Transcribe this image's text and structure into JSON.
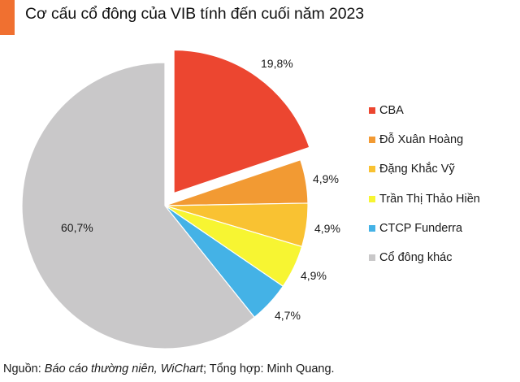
{
  "header": {
    "title": "Cơ cấu cổ đông của VIB tính đến cuối năm 2023",
    "accent_color": "#f07030"
  },
  "chart_data": {
    "type": "pie",
    "title": "Cơ cấu cổ đông của VIB tính đến cuối năm 2023",
    "categories": [
      "CBA",
      "Đỗ Xuân Hoàng",
      "Đặng Khắc Vỹ",
      "Trần Thị Thảo Hiền",
      "CTCP Funderra",
      "Cổ đông khác"
    ],
    "values": [
      19.8,
      4.9,
      4.9,
      4.9,
      4.7,
      60.7
    ],
    "value_labels": [
      "19,8%",
      "4,9%",
      "4,9%",
      "4,9%",
      "4,7%",
      "60,7%"
    ],
    "colors": [
      "#ec4630",
      "#f29a33",
      "#f9c232",
      "#f7f532",
      "#44b2e6",
      "#c9c8c9"
    ],
    "exploded": [
      "CBA"
    ],
    "legend_position": "right",
    "unit": "%"
  },
  "legend": {
    "items": [
      {
        "label": "CBA",
        "color": "#ec4630"
      },
      {
        "label": "Đỗ Xuân Hoàng",
        "color": "#f29a33"
      },
      {
        "label": "Đặng Khắc Vỹ",
        "color": "#f9c232"
      },
      {
        "label": "Trần Thị Thảo Hiền",
        "color": "#f7f532"
      },
      {
        "label": "CTCP Funderra",
        "color": "#44b2e6"
      },
      {
        "label": "Cổ đông khác",
        "color": "#c9c8c9"
      }
    ]
  },
  "footer": {
    "prefix": "Nguồn: ",
    "source_italic": "Báo cáo thường niên, WiChart",
    "suffix": "; Tổng hợp: Minh Quang."
  }
}
